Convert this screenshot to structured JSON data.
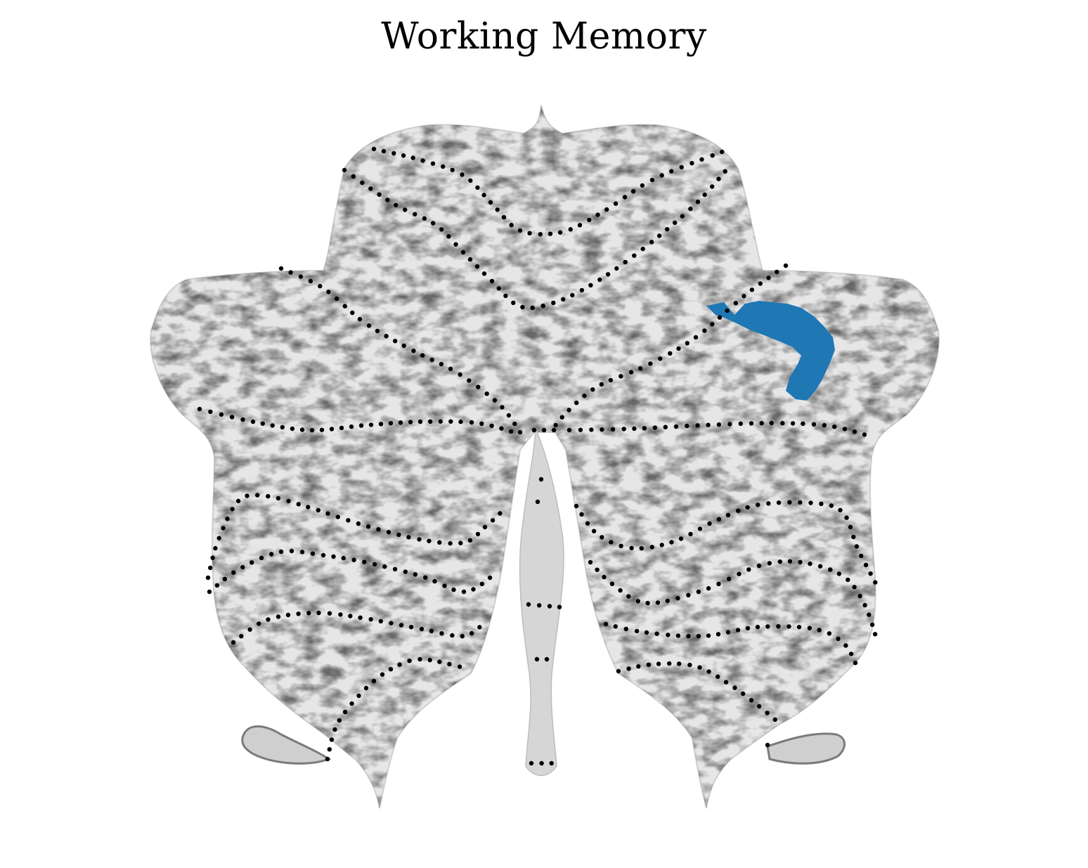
{
  "title": "Working Memory",
  "colors": {
    "background": "#ffffff",
    "flatmap_fill": "#e3e3e3",
    "flatmap_dark": "#8c8c8c",
    "boundary_dots": "#000000",
    "activation": "#1f77b4"
  }
}
